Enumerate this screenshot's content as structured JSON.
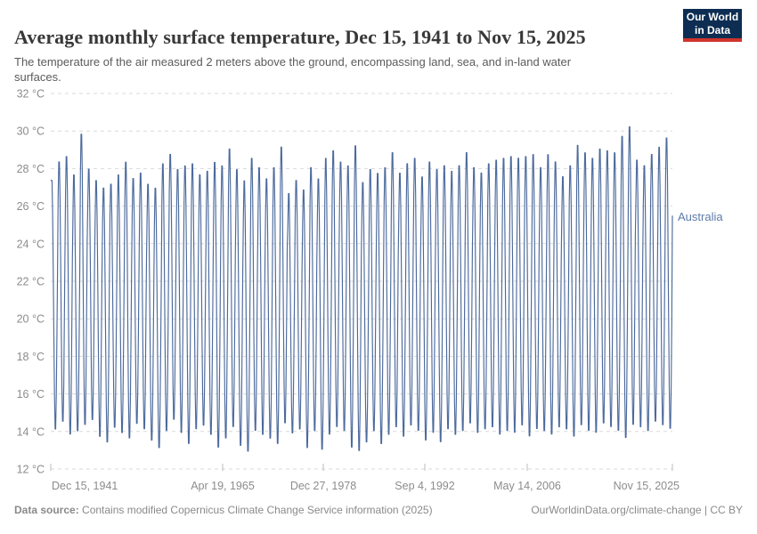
{
  "header": {
    "title": "Average monthly surface temperature, Dec 15, 1941 to Nov 15, 2025",
    "subtitle": "The temperature of the air measured 2 meters above the ground, encompassing land, sea, and in-land water surfaces.",
    "logo": {
      "line1": "Our World",
      "line2": "in Data"
    }
  },
  "footer": {
    "source_label": "Data source:",
    "source_text": " Contains modified Copernicus Climate Change Service information (2025)",
    "attribution": "OurWorldinData.org/climate-change | CC BY"
  },
  "colors": {
    "line": "#4c6a9c",
    "series_label": "#5d7ba9",
    "grid": "#dadada",
    "tick": "#bdbdbd",
    "axis_text": "#8c8c8c",
    "title": "#383838",
    "subtitle": "#5b5b5b",
    "footer": "#8a8a8a",
    "logo_bg": "#0d2d52",
    "logo_red": "#d0342c"
  },
  "chart_data": {
    "type": "line",
    "title": "Average monthly surface temperature, Dec 15, 1941 to Nov 15, 2025",
    "entity": "Australia",
    "unit": "°C",
    "frequency": "monthly",
    "layout": {
      "grid": true,
      "grid_style": "dashed",
      "legend": "inline-right-of-line"
    },
    "y_axis": {
      "min": 12,
      "max": 32,
      "step": 2,
      "tick_labels": [
        "32 °C",
        "30 °C",
        "28 °C",
        "26 °C",
        "24 °C",
        "22 °C",
        "20 °C",
        "18 °C",
        "16 °C",
        "14 °C",
        "12 °C"
      ]
    },
    "x_axis": {
      "start": "Dec 15, 1941",
      "end": "Nov 15, 2025",
      "tick_labels": [
        "Dec 15, 1941",
        "Apr 19, 1965",
        "Dec 27, 1978",
        "Sep 4, 1992",
        "May 14, 2006",
        "Nov 15, 2025"
      ]
    },
    "series": [
      {
        "name": "Australia",
        "color": "#4c6a9c",
        "seasonal_peak_months": "January-February",
        "seasonal_trough_month": "July",
        "first_month": "Dec 1941",
        "last_month": "Nov 2025",
        "first_value_dec_1941": 27.4,
        "last_value_nov_2025": 25.5,
        "start_year": 1942,
        "annual_summer_peaks": [
          27.6,
          28.6,
          28.9,
          27.9,
          30.1,
          28.2,
          27.6,
          27.2,
          27.4,
          27.9,
          28.6,
          27.7,
          28.0,
          27.4,
          27.2,
          28.5,
          29.0,
          28.2,
          28.4,
          28.5,
          27.9,
          28.1,
          28.6,
          28.4,
          29.3,
          28.2,
          27.6,
          28.8,
          28.3,
          27.7,
          28.3,
          29.4,
          26.9,
          27.6,
          27.1,
          28.3,
          27.7,
          28.8,
          29.2,
          28.6,
          28.4,
          29.5,
          27.5,
          28.2,
          28.0,
          28.3,
          29.1,
          28.0,
          28.5,
          28.8,
          27.8,
          28.6,
          28.2,
          28.4,
          28.1,
          28.4,
          29.1,
          28.3,
          28.0,
          28.5,
          28.7,
          28.8,
          28.9,
          28.8,
          28.9,
          29.0,
          28.3,
          29.0,
          28.6,
          27.8,
          28.4,
          29.5,
          29.1,
          28.8,
          29.3,
          29.2,
          29.1,
          30.0,
          30.5,
          28.7,
          28.4,
          29.0,
          29.4,
          29.9
        ],
        "annual_winter_troughs": [
          13.9,
          14.3,
          13.6,
          13.8,
          14.1,
          14.4,
          13.5,
          13.2,
          14.0,
          13.7,
          13.4,
          14.2,
          13.9,
          13.3,
          12.9,
          13.8,
          14.4,
          13.7,
          13.1,
          13.9,
          14.1,
          13.6,
          12.9,
          13.4,
          14.0,
          13.0,
          12.7,
          13.8,
          13.6,
          13.4,
          13.1,
          14.2,
          13.7,
          13.9,
          12.9,
          13.8,
          12.8,
          13.6,
          14.0,
          13.8,
          12.9,
          12.7,
          13.2,
          13.8,
          13.1,
          13.6,
          14.0,
          13.5,
          14.1,
          13.8,
          13.3,
          13.7,
          13.2,
          13.9,
          13.6,
          13.8,
          14.2,
          13.7,
          13.9,
          14.0,
          13.6,
          13.8,
          13.7,
          14.1,
          13.5,
          13.9,
          13.8,
          13.6,
          14.0,
          13.9,
          13.5,
          14.1,
          13.8,
          13.7,
          14.2,
          14.0,
          13.8,
          13.4,
          14.1,
          14.0,
          13.8,
          14.3,
          14.1,
          13.9
        ]
      }
    ]
  }
}
